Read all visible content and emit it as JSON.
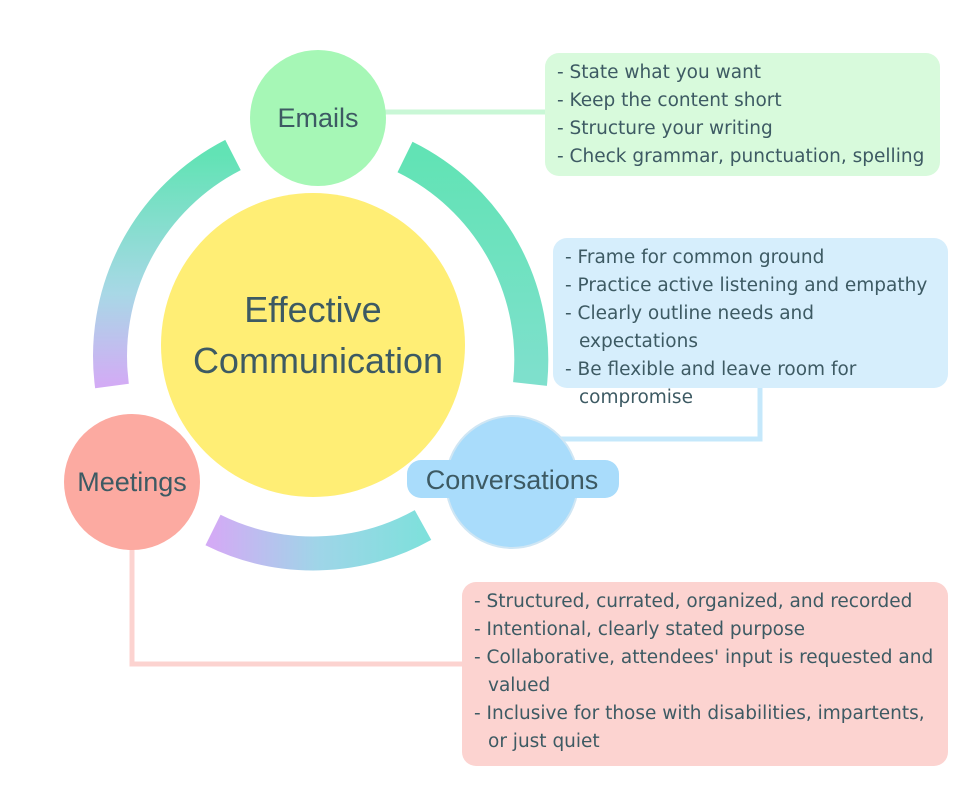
{
  "center": {
    "line1": "Effective",
    "line2": "Communication"
  },
  "nodes": {
    "emails": "Emails",
    "conversations": "Conversations",
    "meetings": "Meetings"
  },
  "emails_box": {
    "items": [
      "- State what you want",
      "- Keep the content short",
      "- Structure your writing",
      "- Check grammar, punctuation, spelling"
    ]
  },
  "conversations_box": {
    "items": [
      "- Frame for common ground",
      "- Practice active listening and empathy",
      "- Clearly outline needs and expectations",
      "- Be flexible and leave room for compromise"
    ]
  },
  "meetings_box": {
    "items": [
      "- Structured, currated, organized, and recorded",
      "- Intentional, clearly stated purpose",
      "- Collaborative, attendees' input is requested and valued",
      "- Inclusive for those with disabilities, impartents, or just quiet"
    ]
  },
  "colors": {
    "text": "#3d5a63",
    "center_fill": "#ffee75",
    "emails_fill": "#a6f7b6",
    "conversations_fill": "#a9dcfb",
    "meetings_fill": "#fcaaa1",
    "arc_green": "#62e3b5",
    "arc_purple": "#d3abf5",
    "arc_teal": "#7fe0dc"
  }
}
